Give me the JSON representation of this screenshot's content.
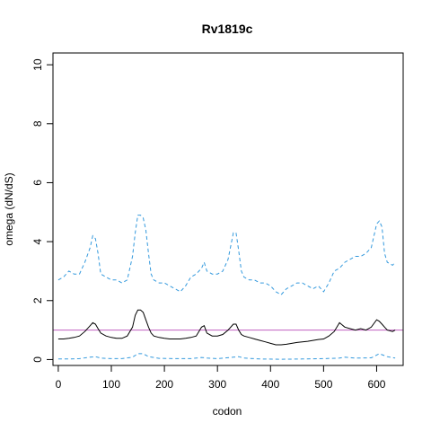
{
  "chart_data": {
    "type": "line",
    "title": "Rv1819c",
    "xlabel": "codon",
    "ylabel": "omega (dN/dS)",
    "xlim": [
      -10,
      650
    ],
    "ylim": [
      -0.2,
      10.4
    ],
    "x_ticks": [
      0,
      100,
      200,
      300,
      400,
      500,
      600
    ],
    "y_ticks": [
      0,
      2,
      4,
      6,
      8,
      10
    ],
    "grid": false,
    "legend": "none",
    "reference_line": {
      "y": 1,
      "color": "#c060c0"
    },
    "series": [
      {
        "style": "dashed",
        "color": "#3399dd",
        "x": [
          0,
          10,
          20,
          30,
          40,
          50,
          60,
          65,
          70,
          75,
          80,
          90,
          100,
          110,
          120,
          130,
          140,
          145,
          150,
          155,
          160,
          165,
          170,
          175,
          180,
          190,
          200,
          210,
          220,
          230,
          240,
          250,
          260,
          270,
          275,
          280,
          290,
          300,
          310,
          320,
          330,
          335,
          340,
          345,
          350,
          360,
          370,
          380,
          390,
          400,
          410,
          420,
          430,
          440,
          450,
          460,
          470,
          480,
          490,
          500,
          510,
          520,
          530,
          540,
          550,
          560,
          570,
          580,
          590,
          600,
          605,
          610,
          615,
          620,
          630,
          635
        ],
        "y": [
          2.7,
          2.8,
          3.0,
          2.9,
          2.9,
          3.3,
          3.8,
          4.2,
          4.1,
          3.6,
          2.9,
          2.8,
          2.7,
          2.7,
          2.6,
          2.7,
          3.5,
          4.3,
          4.9,
          4.9,
          4.8,
          4.4,
          3.6,
          2.9,
          2.7,
          2.6,
          2.6,
          2.5,
          2.4,
          2.3,
          2.5,
          2.8,
          2.9,
          3.1,
          3.3,
          3.0,
          2.9,
          2.9,
          3.0,
          3.4,
          4.3,
          4.3,
          3.7,
          3.0,
          2.8,
          2.7,
          2.7,
          2.6,
          2.6,
          2.5,
          2.3,
          2.2,
          2.4,
          2.5,
          2.6,
          2.6,
          2.5,
          2.4,
          2.5,
          2.3,
          2.6,
          3.0,
          3.1,
          3.3,
          3.4,
          3.5,
          3.5,
          3.6,
          3.8,
          4.6,
          4.7,
          4.5,
          3.6,
          3.3,
          3.2,
          3.3
        ]
      },
      {
        "style": "solid",
        "color": "#000000",
        "x": [
          0,
          10,
          20,
          30,
          40,
          50,
          60,
          65,
          70,
          75,
          80,
          90,
          100,
          110,
          120,
          130,
          140,
          145,
          150,
          155,
          160,
          165,
          170,
          175,
          180,
          190,
          200,
          210,
          220,
          230,
          240,
          250,
          260,
          270,
          275,
          280,
          290,
          300,
          310,
          320,
          330,
          335,
          340,
          345,
          350,
          360,
          370,
          380,
          390,
          400,
          410,
          420,
          430,
          440,
          450,
          460,
          470,
          480,
          490,
          500,
          510,
          520,
          530,
          540,
          550,
          560,
          570,
          580,
          590,
          600,
          605,
          610,
          615,
          620,
          630,
          635
        ],
        "y": [
          0.7,
          0.7,
          0.72,
          0.75,
          0.8,
          0.95,
          1.15,
          1.25,
          1.2,
          1.05,
          0.9,
          0.8,
          0.75,
          0.72,
          0.72,
          0.8,
          1.1,
          1.5,
          1.68,
          1.68,
          1.6,
          1.35,
          1.1,
          0.9,
          0.8,
          0.75,
          0.72,
          0.7,
          0.7,
          0.7,
          0.72,
          0.75,
          0.8,
          1.1,
          1.15,
          0.9,
          0.8,
          0.8,
          0.85,
          1.0,
          1.2,
          1.2,
          1.0,
          0.85,
          0.8,
          0.75,
          0.7,
          0.65,
          0.6,
          0.55,
          0.5,
          0.5,
          0.52,
          0.55,
          0.58,
          0.6,
          0.62,
          0.65,
          0.68,
          0.7,
          0.8,
          0.95,
          1.25,
          1.1,
          1.05,
          1.0,
          1.05,
          1.0,
          1.1,
          1.35,
          1.3,
          1.2,
          1.1,
          1.0,
          0.95,
          1.0
        ]
      },
      {
        "style": "dashed",
        "color": "#3399dd",
        "x": [
          0,
          20,
          40,
          60,
          70,
          80,
          100,
          120,
          140,
          150,
          160,
          170,
          190,
          220,
          250,
          270,
          280,
          300,
          330,
          340,
          350,
          380,
          420,
          460,
          500,
          530,
          540,
          560,
          590,
          605,
          620,
          635
        ],
        "y": [
          0.02,
          0.02,
          0.03,
          0.08,
          0.1,
          0.05,
          0.03,
          0.03,
          0.08,
          0.2,
          0.2,
          0.1,
          0.04,
          0.03,
          0.03,
          0.07,
          0.05,
          0.03,
          0.08,
          0.1,
          0.05,
          0.02,
          0.01,
          0.02,
          0.03,
          0.05,
          0.08,
          0.05,
          0.06,
          0.2,
          0.1,
          0.05
        ]
      }
    ]
  }
}
